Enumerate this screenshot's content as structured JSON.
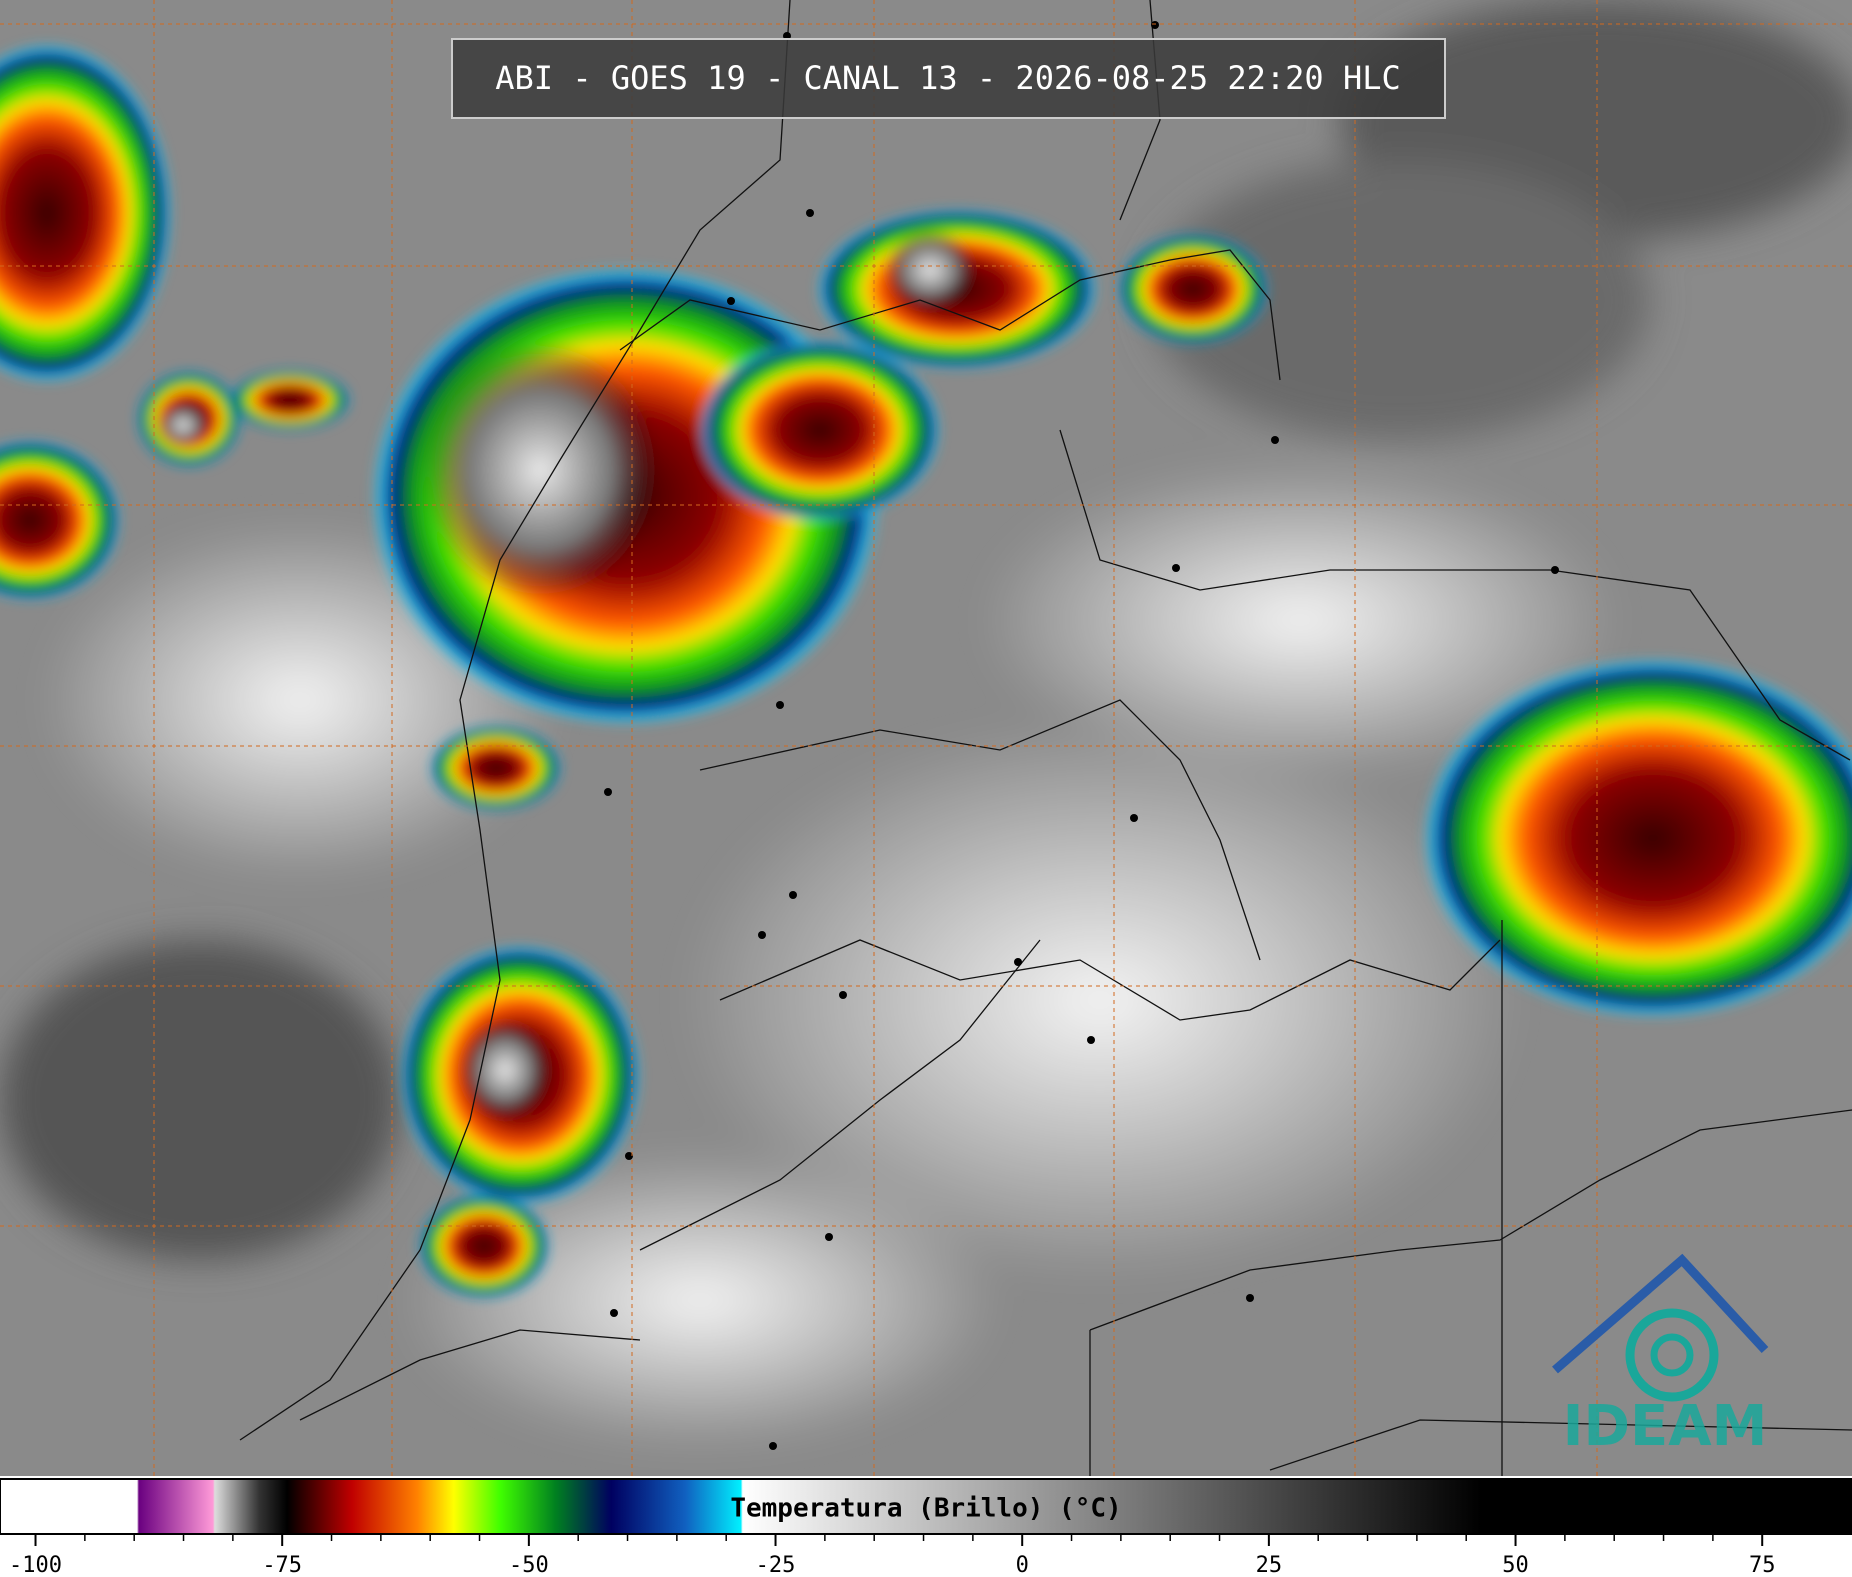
{
  "title": "ABI - GOES 19 - CANAL 13 - 2026-08-25 22:20 HLC",
  "logo": "IDEAM",
  "colorbar": {
    "label": "Temperatura (Brillo) (°C)",
    "range": [
      -103.6,
      84.1
    ],
    "ticks": [
      -100,
      -75,
      -50,
      -25,
      0,
      25,
      50,
      75
    ]
  }
}
